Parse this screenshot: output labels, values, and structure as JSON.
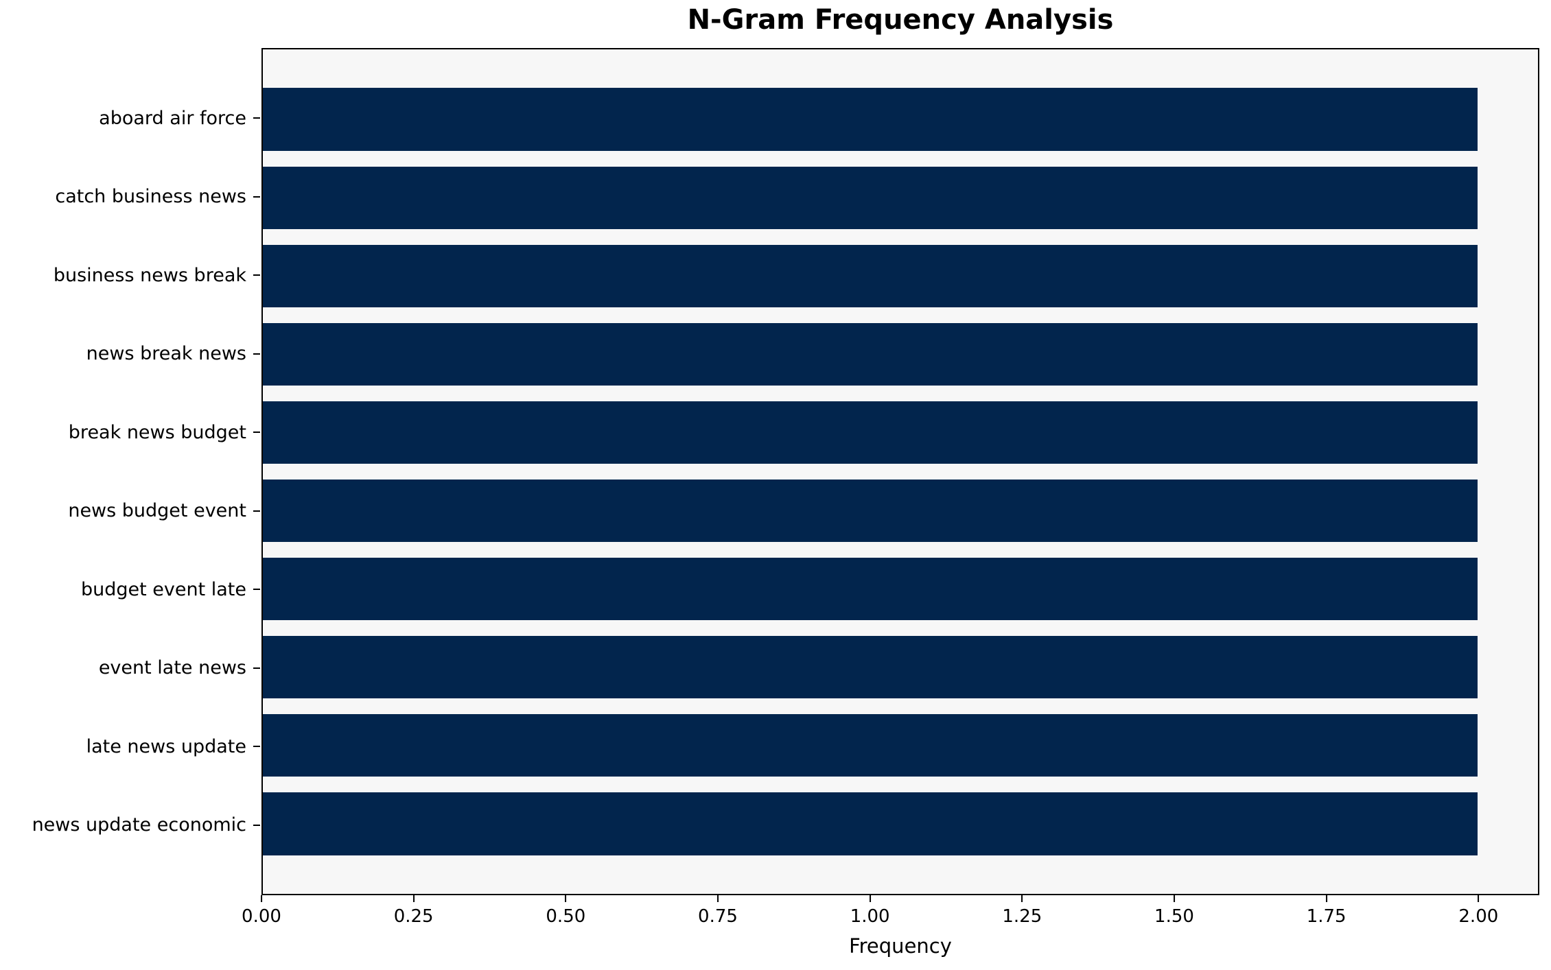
{
  "chart_data": {
    "type": "bar",
    "orientation": "horizontal",
    "title": "N-Gram Frequency Analysis",
    "xlabel": "Frequency",
    "ylabel": "",
    "categories": [
      "aboard air force",
      "catch business news",
      "business news break",
      "news break news",
      "break news budget",
      "news budget event",
      "budget event late",
      "event late news",
      "late news update",
      "news update economic"
    ],
    "values": [
      2,
      2,
      2,
      2,
      2,
      2,
      2,
      2,
      2,
      2
    ],
    "xlim": [
      0,
      2.1
    ],
    "xticks": [
      {
        "value": 0.0,
        "label": "0.00"
      },
      {
        "value": 0.25,
        "label": "0.25"
      },
      {
        "value": 0.5,
        "label": "0.50"
      },
      {
        "value": 0.75,
        "label": "0.75"
      },
      {
        "value": 1.0,
        "label": "1.00"
      },
      {
        "value": 1.25,
        "label": "1.25"
      },
      {
        "value": 1.5,
        "label": "1.50"
      },
      {
        "value": 1.75,
        "label": "1.75"
      },
      {
        "value": 2.0,
        "label": "2.00"
      }
    ],
    "grid": false,
    "legend": false,
    "colors": {
      "bar": "#02254d",
      "plot_background": "#f7f7f7",
      "figure_background": "#ffffff"
    }
  }
}
